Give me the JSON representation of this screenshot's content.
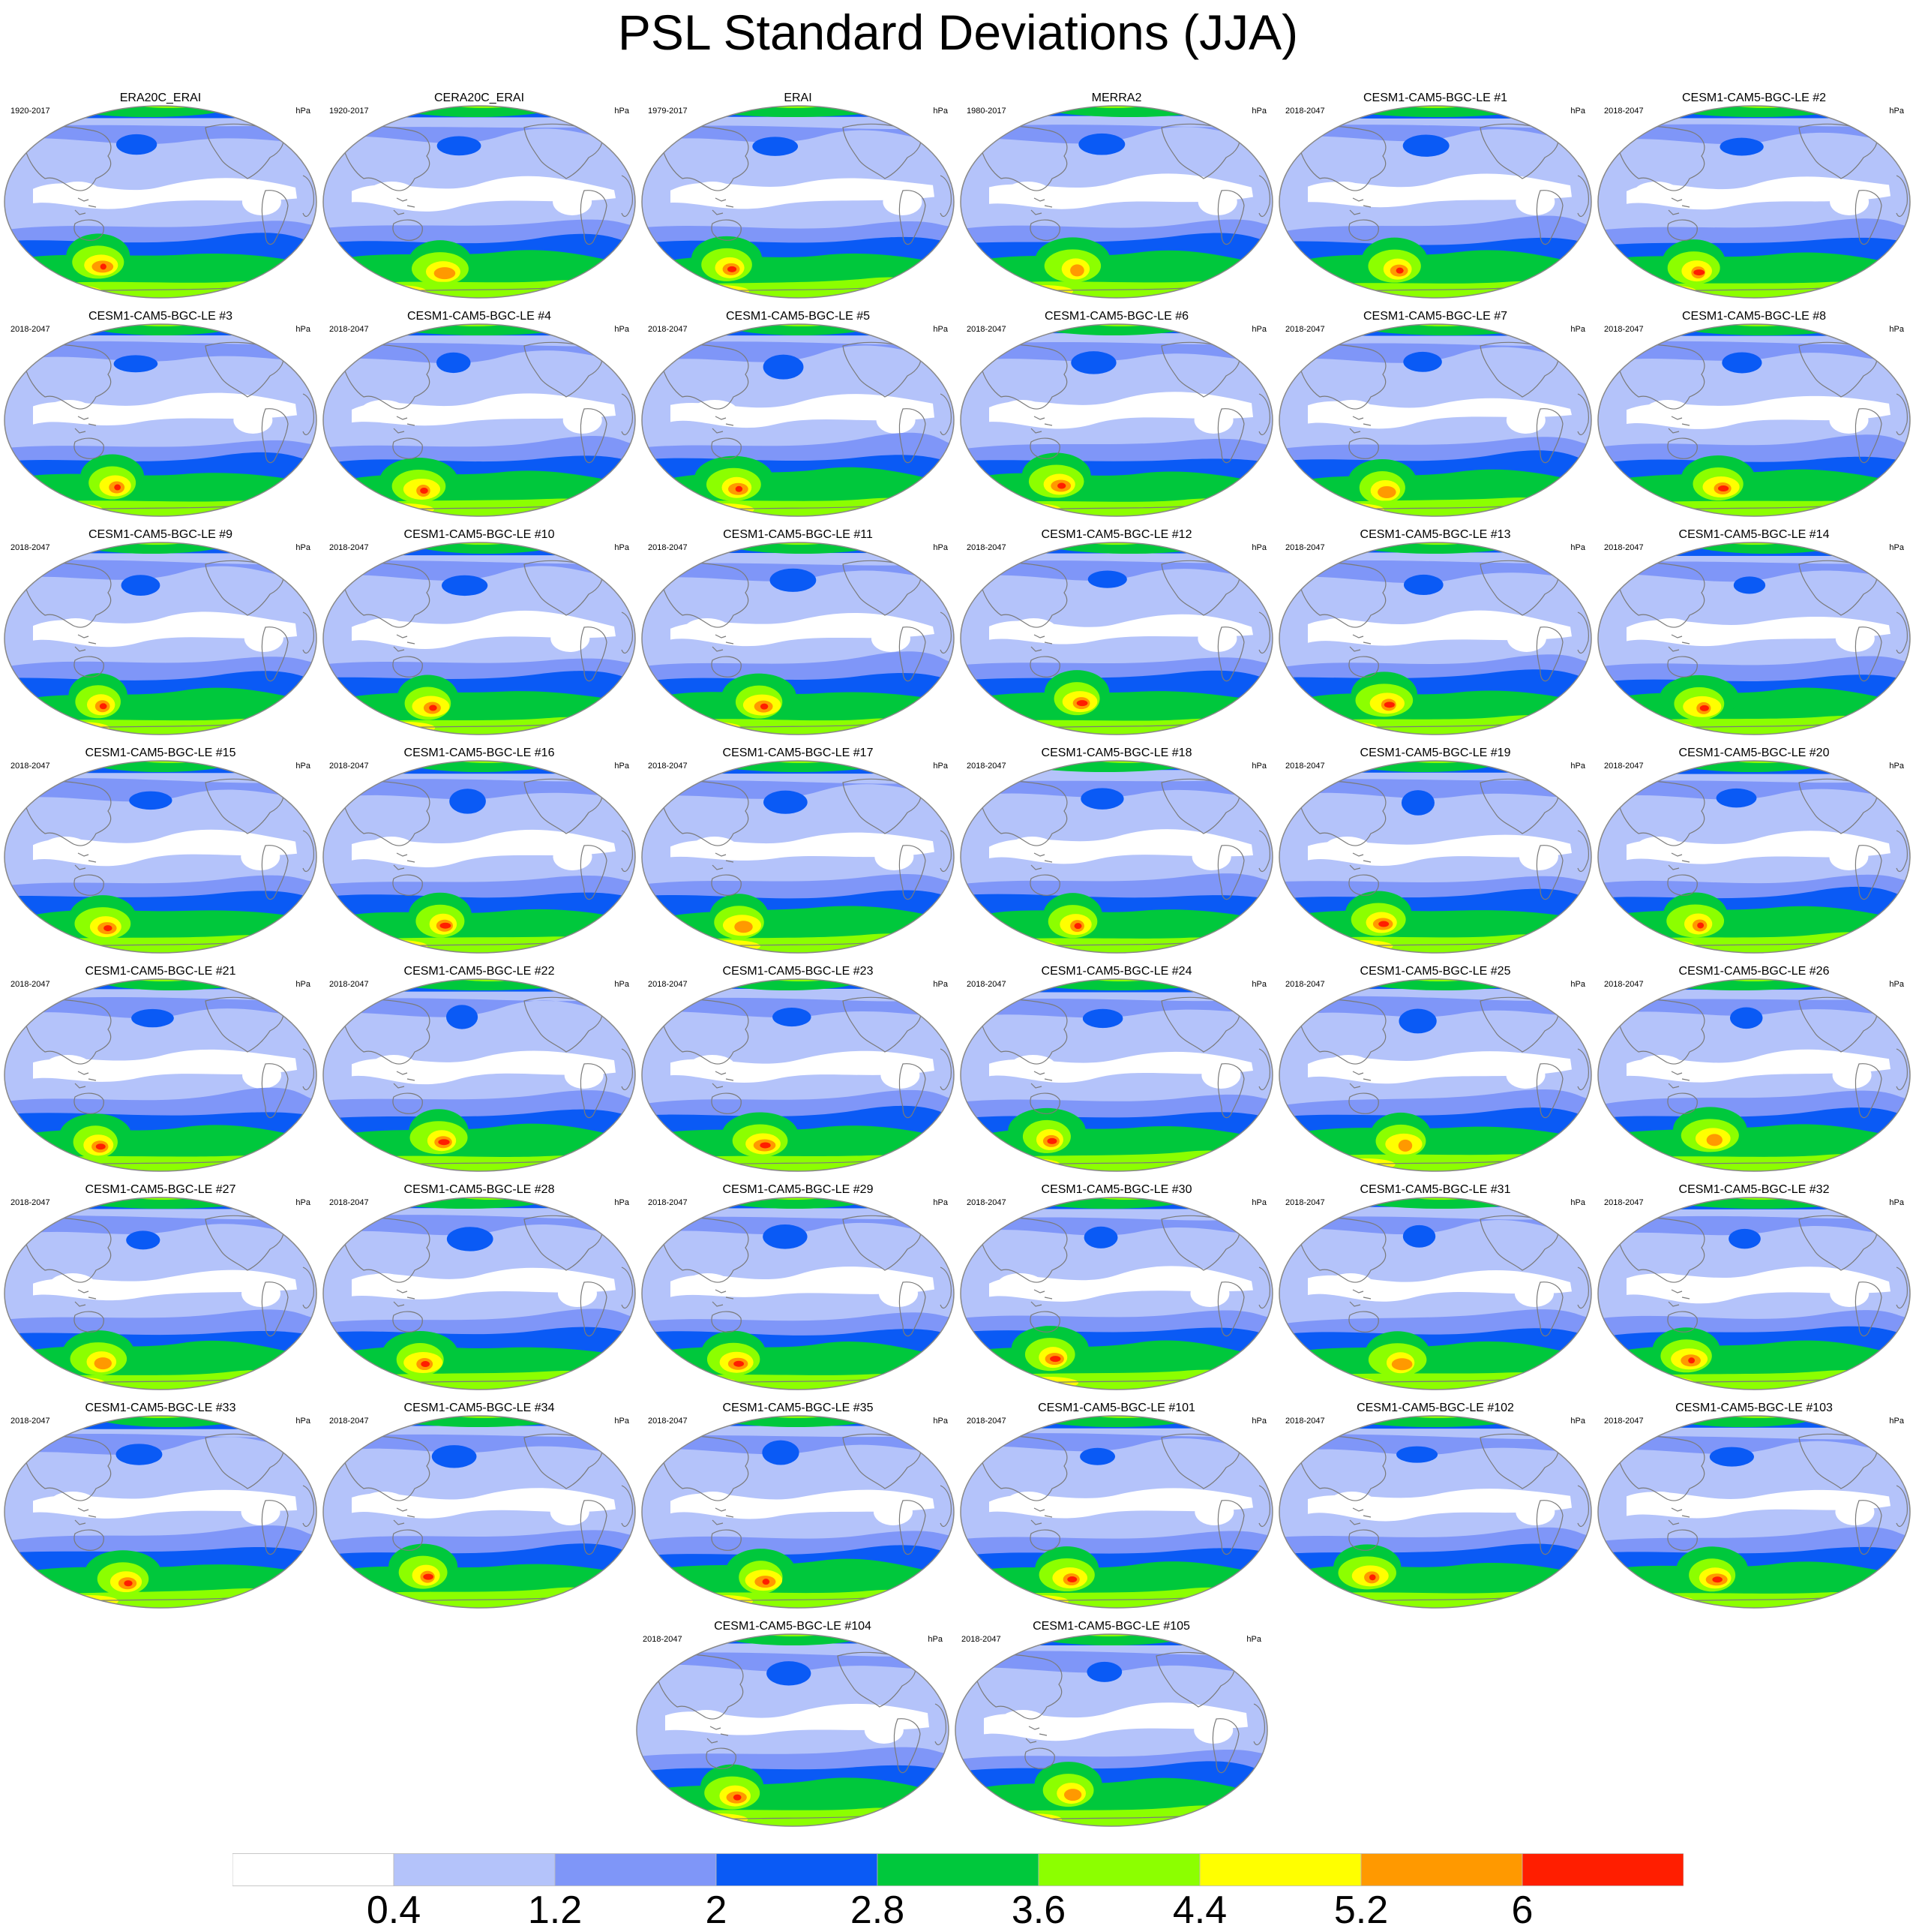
{
  "figure": {
    "title": "PSL Standard Deviations (JJA)"
  },
  "panels": [
    {
      "title": "ERA20C_ERAI",
      "period": "1920-2017",
      "units": "hPa"
    },
    {
      "title": "CERA20C_ERAI",
      "period": "1920-2017",
      "units": "hPa"
    },
    {
      "title": "ERAI",
      "period": "1979-2017",
      "units": "hPa"
    },
    {
      "title": "MERRA2",
      "period": "1980-2017",
      "units": "hPa"
    },
    {
      "title": "CESM1-CAM5-BGC-LE #1",
      "period": "2018-2047",
      "units": "hPa"
    },
    {
      "title": "CESM1-CAM5-BGC-LE #2",
      "period": "2018-2047",
      "units": "hPa"
    },
    {
      "title": "CESM1-CAM5-BGC-LE #3",
      "period": "2018-2047",
      "units": "hPa"
    },
    {
      "title": "CESM1-CAM5-BGC-LE #4",
      "period": "2018-2047",
      "units": "hPa"
    },
    {
      "title": "CESM1-CAM5-BGC-LE #5",
      "period": "2018-2047",
      "units": "hPa"
    },
    {
      "title": "CESM1-CAM5-BGC-LE #6",
      "period": "2018-2047",
      "units": "hPa"
    },
    {
      "title": "CESM1-CAM5-BGC-LE #7",
      "period": "2018-2047",
      "units": "hPa"
    },
    {
      "title": "CESM1-CAM5-BGC-LE #8",
      "period": "2018-2047",
      "units": "hPa"
    },
    {
      "title": "CESM1-CAM5-BGC-LE #9",
      "period": "2018-2047",
      "units": "hPa"
    },
    {
      "title": "CESM1-CAM5-BGC-LE #10",
      "period": "2018-2047",
      "units": "hPa"
    },
    {
      "title": "CESM1-CAM5-BGC-LE #11",
      "period": "2018-2047",
      "units": "hPa"
    },
    {
      "title": "CESM1-CAM5-BGC-LE #12",
      "period": "2018-2047",
      "units": "hPa"
    },
    {
      "title": "CESM1-CAM5-BGC-LE #13",
      "period": "2018-2047",
      "units": "hPa"
    },
    {
      "title": "CESM1-CAM5-BGC-LE #14",
      "period": "2018-2047",
      "units": "hPa"
    },
    {
      "title": "CESM1-CAM5-BGC-LE #15",
      "period": "2018-2047",
      "units": "hPa"
    },
    {
      "title": "CESM1-CAM5-BGC-LE #16",
      "period": "2018-2047",
      "units": "hPa"
    },
    {
      "title": "CESM1-CAM5-BGC-LE #17",
      "period": "2018-2047",
      "units": "hPa"
    },
    {
      "title": "CESM1-CAM5-BGC-LE #18",
      "period": "2018-2047",
      "units": "hPa"
    },
    {
      "title": "CESM1-CAM5-BGC-LE #19",
      "period": "2018-2047",
      "units": "hPa"
    },
    {
      "title": "CESM1-CAM5-BGC-LE #20",
      "period": "2018-2047",
      "units": "hPa"
    },
    {
      "title": "CESM1-CAM5-BGC-LE #21",
      "period": "2018-2047",
      "units": "hPa"
    },
    {
      "title": "CESM1-CAM5-BGC-LE #22",
      "period": "2018-2047",
      "units": "hPa"
    },
    {
      "title": "CESM1-CAM5-BGC-LE #23",
      "period": "2018-2047",
      "units": "hPa"
    },
    {
      "title": "CESM1-CAM5-BGC-LE #24",
      "period": "2018-2047",
      "units": "hPa"
    },
    {
      "title": "CESM1-CAM5-BGC-LE #25",
      "period": "2018-2047",
      "units": "hPa"
    },
    {
      "title": "CESM1-CAM5-BGC-LE #26",
      "period": "2018-2047",
      "units": "hPa"
    },
    {
      "title": "CESM1-CAM5-BGC-LE #27",
      "period": "2018-2047",
      "units": "hPa"
    },
    {
      "title": "CESM1-CAM5-BGC-LE #28",
      "period": "2018-2047",
      "units": "hPa"
    },
    {
      "title": "CESM1-CAM5-BGC-LE #29",
      "period": "2018-2047",
      "units": "hPa"
    },
    {
      "title": "CESM1-CAM5-BGC-LE #30",
      "period": "2018-2047",
      "units": "hPa"
    },
    {
      "title": "CESM1-CAM5-BGC-LE #31",
      "period": "2018-2047",
      "units": "hPa"
    },
    {
      "title": "CESM1-CAM5-BGC-LE #32",
      "period": "2018-2047",
      "units": "hPa"
    },
    {
      "title": "CESM1-CAM5-BGC-LE #33",
      "period": "2018-2047",
      "units": "hPa"
    },
    {
      "title": "CESM1-CAM5-BGC-LE #34",
      "period": "2018-2047",
      "units": "hPa"
    },
    {
      "title": "CESM1-CAM5-BGC-LE #35",
      "period": "2018-2047",
      "units": "hPa"
    },
    {
      "title": "CESM1-CAM5-BGC-LE #101",
      "period": "2018-2047",
      "units": "hPa"
    },
    {
      "title": "CESM1-CAM5-BGC-LE #102",
      "period": "2018-2047",
      "units": "hPa"
    },
    {
      "title": "CESM1-CAM5-BGC-LE #103",
      "period": "2018-2047",
      "units": "hPa"
    },
    {
      "title": "CESM1-CAM5-BGC-LE #104",
      "period": "2018-2047",
      "units": "hPa"
    },
    {
      "title": "CESM1-CAM5-BGC-LE #105",
      "period": "2018-2047",
      "units": "hPa"
    }
  ],
  "colorbar": {
    "labels": [
      "0.4",
      "1.2",
      "2",
      "2.8",
      "3.6",
      "4.4",
      "5.2",
      "6"
    ],
    "colors": [
      "#ffffff",
      "#b4c3fa",
      "#7f96f8",
      "#0a5af5",
      "#00c83c",
      "#8cff00",
      "#ffff00",
      "#ff9900",
      "#ff1e00"
    ]
  },
  "map_style": {
    "coastline_color": "#7a7a7a",
    "outline_color": "#888888"
  }
}
